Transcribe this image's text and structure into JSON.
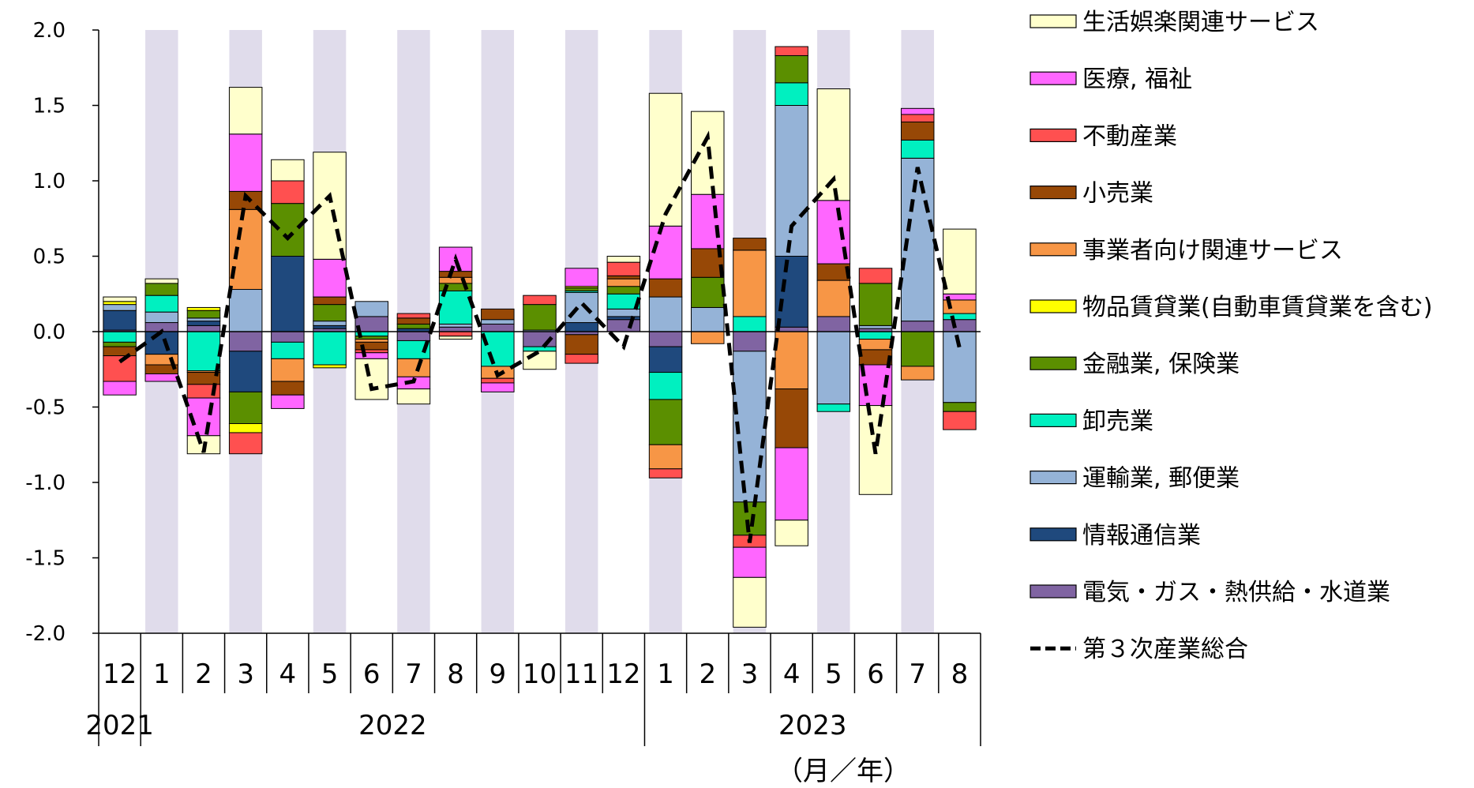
{
  "chart_data": {
    "type": "bar",
    "stacked": true,
    "unit_label": "（月／年）",
    "x_months": [
      "12",
      "1",
      "2",
      "3",
      "4",
      "5",
      "6",
      "7",
      "8",
      "9",
      "10",
      "11",
      "12",
      "1",
      "2",
      "3",
      "4",
      "5",
      "6",
      "7",
      "8"
    ],
    "x_years": [
      {
        "label": "2021",
        "start": 0,
        "end": 0
      },
      {
        "label": "2022",
        "start": 1,
        "end": 12
      },
      {
        "label": "2023",
        "start": 13,
        "end": 20
      }
    ],
    "ylim": [
      -2.0,
      2.0
    ],
    "yticks": [
      "2.0",
      "1.5",
      "1.0",
      "0.5",
      "0.0",
      "-0.5",
      "-1.0",
      "-1.5",
      "-2.0"
    ],
    "shaded_months": [
      1,
      3,
      5,
      7,
      9,
      11,
      13,
      15,
      17,
      19
    ],
    "series": [
      {
        "name": "電気・ガス・熱供給・水道業",
        "color": "#8064A2",
        "values": [
          0.01,
          0.06,
          0.04,
          -0.13,
          -0.07,
          0.02,
          0.1,
          -0.06,
          0.03,
          0.05,
          -0.1,
          -0.02,
          0.08,
          -0.1,
          0.0,
          -0.13,
          0.03,
          0.1,
          0.02,
          0.07,
          0.08
        ]
      },
      {
        "name": "情報通信業",
        "color": "#1F497D",
        "values": [
          0.13,
          -0.15,
          0.03,
          -0.27,
          0.5,
          0.02,
          0.0,
          0.02,
          0.0,
          0.0,
          0.0,
          0.06,
          0.02,
          -0.17,
          0.0,
          0.0,
          0.47,
          0.0,
          0.0,
          0.0,
          0.0
        ]
      },
      {
        "name": "運輸業, 郵便業",
        "color": "#95B3D7",
        "values": [
          0.04,
          0.07,
          0.02,
          0.28,
          0.0,
          0.03,
          0.1,
          0.0,
          0.02,
          0.03,
          0.01,
          0.2,
          0.05,
          0.23,
          0.16,
          -1.0,
          1.0,
          -0.48,
          0.02,
          1.08,
          -0.47
        ]
      },
      {
        "name": "卸売業",
        "color": "#00F0C0",
        "values": [
          -0.07,
          0.11,
          -0.26,
          0.0,
          -0.11,
          -0.22,
          -0.03,
          -0.12,
          0.22,
          -0.23,
          -0.03,
          0.01,
          0.1,
          -0.18,
          0.0,
          0.1,
          0.15,
          -0.05,
          -0.05,
          0.12,
          0.04
        ]
      },
      {
        "name": "金融業, 保険業",
        "color": "#5B8F00",
        "values": [
          -0.03,
          0.08,
          0.05,
          -0.21,
          0.35,
          0.11,
          -0.02,
          0.03,
          0.05,
          0.0,
          0.17,
          0.02,
          0.05,
          -0.3,
          0.2,
          -0.22,
          0.18,
          0.0,
          0.28,
          -0.23,
          -0.06
        ]
      },
      {
        "name": "物品賃貸業(自動車賃貸業を含む)",
        "color": "#FFFF00",
        "values": [
          0.02,
          0.0,
          0.02,
          -0.06,
          0.0,
          -0.02,
          0.0,
          0.0,
          0.0,
          0.0,
          0.0,
          0.01,
          0.0,
          0.0,
          0.0,
          0.0,
          0.0,
          0.0,
          0.0,
          0.0,
          0.0
        ]
      },
      {
        "name": "事業者向け関連サービス",
        "color": "#F79646",
        "values": [
          0.0,
          -0.07,
          -0.01,
          0.53,
          -0.15,
          0.0,
          -0.02,
          -0.12,
          0.04,
          -0.08,
          0.0,
          0.0,
          0.05,
          -0.16,
          -0.08,
          0.44,
          -0.38,
          0.24,
          -0.07,
          -0.09,
          0.09
        ]
      },
      {
        "name": "小売業",
        "color": "#974806",
        "values": [
          -0.06,
          -0.06,
          -0.08,
          0.12,
          -0.09,
          0.05,
          -0.05,
          0.04,
          0.04,
          0.07,
          0.0,
          -0.13,
          0.02,
          0.12,
          0.19,
          0.08,
          -0.39,
          0.11,
          -0.1,
          0.12,
          0.0
        ]
      },
      {
        "name": "不動産業",
        "color": "#FF5050",
        "values": [
          -0.17,
          0.0,
          -0.09,
          -0.14,
          0.15,
          0.0,
          -0.02,
          0.03,
          -0.03,
          -0.03,
          0.06,
          -0.06,
          0.09,
          -0.06,
          0.0,
          -0.08,
          0.06,
          0.0,
          0.1,
          0.05,
          -0.12
        ]
      },
      {
        "name": "医療, 福祉",
        "color": "#FF66FF",
        "values": [
          -0.09,
          -0.05,
          -0.25,
          0.38,
          -0.09,
          0.25,
          -0.04,
          -0.08,
          0.16,
          -0.06,
          0.0,
          0.12,
          0.0,
          0.35,
          0.36,
          -0.2,
          -0.48,
          0.42,
          -0.27,
          0.04,
          0.04
        ]
      },
      {
        "name": "生活娯楽関連サービス",
        "color": "#FFFFCC",
        "values": [
          0.03,
          0.03,
          -0.12,
          0.31,
          0.14,
          0.71,
          -0.27,
          -0.1,
          -0.02,
          0.0,
          -0.12,
          0.0,
          0.04,
          0.88,
          0.55,
          -0.33,
          -0.17,
          0.74,
          -0.59,
          0.0,
          0.43
        ]
      }
    ],
    "line": {
      "name": "第３次産業総合",
      "color": "#000000",
      "values": [
        -0.2,
        0.0,
        -0.8,
        0.9,
        0.62,
        0.9,
        -0.38,
        -0.33,
        0.48,
        -0.29,
        -0.13,
        0.19,
        -0.1,
        0.78,
        1.29,
        -1.4,
        0.7,
        1.01,
        -0.81,
        1.09,
        -0.11
      ]
    }
  }
}
